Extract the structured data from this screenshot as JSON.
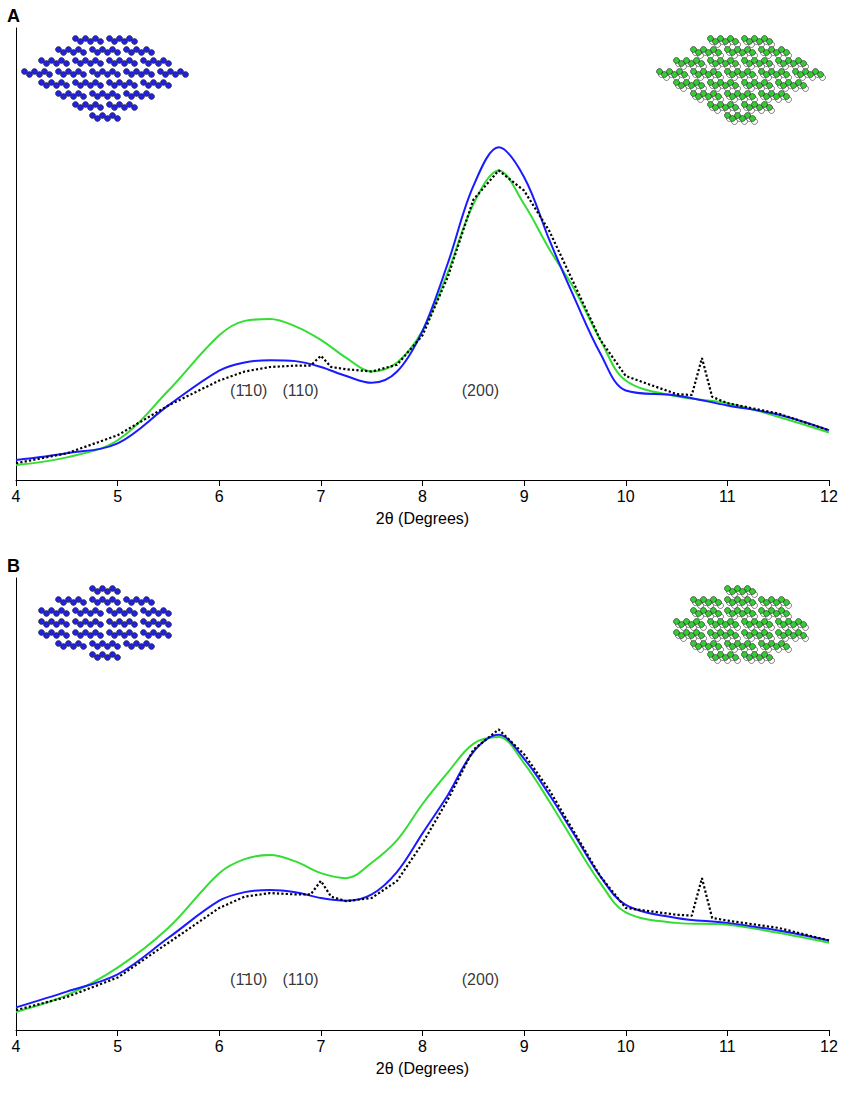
{
  "chart_data": [
    {
      "type": "line",
      "title": "A",
      "x_label": "2θ (Degrees)",
      "xlim": [
        4,
        12
      ],
      "xticks": [
        4,
        5,
        6,
        7,
        8,
        9,
        10,
        11,
        12
      ],
      "ylim": [
        0,
        100
      ],
      "yticks": [],
      "tick_labels": "x",
      "grid": false,
      "series": [
        {
          "color": "#000000",
          "line_style": "dotted",
          "x": [
            4,
            4.5,
            5,
            5.5,
            6,
            6.25,
            6.5,
            6.75,
            6.9,
            7,
            7.1,
            7.25,
            7.5,
            7.75,
            8,
            8.25,
            8.5,
            8.75,
            9,
            9.25,
            9.5,
            9.75,
            10,
            10.5,
            10.65,
            10.75,
            10.85,
            11,
            11.5,
            12
          ],
          "values": [
            3.7,
            5.9,
            9.9,
            16.5,
            22,
            24,
            25,
            25.3,
            25.3,
            27.5,
            25,
            24.5,
            24,
            25.5,
            32,
            45,
            62,
            68.5,
            64,
            55,
            43,
            31,
            23,
            19,
            18.8,
            27,
            18.4,
            17,
            14.7,
            11
          ]
        },
        {
          "color": "#33dd33",
          "line_style": "solid",
          "x": [
            4,
            4.5,
            5,
            5.5,
            6,
            6.25,
            6.5,
            6.75,
            7,
            7.25,
            7.5,
            7.75,
            8,
            8.25,
            8.5,
            8.75,
            9,
            9.25,
            9.5,
            9.75,
            10,
            10.5,
            11,
            11.5,
            12
          ],
          "values": [
            3.3,
            5,
            8.8,
            19.8,
            32,
            35.2,
            35.6,
            34,
            31,
            27,
            24,
            26,
            33,
            46,
            61,
            68.5,
            61,
            51,
            42,
            31,
            22,
            18.5,
            17,
            14,
            10.5
          ]
        },
        {
          "color": "#1a1aff",
          "line_style": "solid",
          "x": [
            4,
            4.5,
            5,
            5.5,
            6,
            6.25,
            6.5,
            6.75,
            7,
            7.25,
            7.5,
            7.75,
            8,
            8.25,
            8.5,
            8.75,
            9,
            9.25,
            9.5,
            9.75,
            10,
            10.5,
            11,
            11.5,
            12
          ],
          "values": [
            4.4,
            5.9,
            8.1,
            16.5,
            24.2,
            26,
            26.5,
            26.3,
            25,
            23,
            21.5,
            24,
            33,
            48,
            65,
            73.6,
            67,
            53,
            40,
            28,
            19.8,
            18.7,
            16.5,
            14.5,
            11
          ]
        }
      ],
      "annotations": [
        {
          "text": "(1̄10)",
          "x": 6.29,
          "y": 19.8
        },
        {
          "text": "(110)",
          "x": 6.8,
          "y": 19.8
        },
        {
          "text": "(200)",
          "x": 8.57,
          "y": 19.8
        }
      ]
    },
    {
      "type": "line",
      "title": "B",
      "x_label": "2θ (Degrees)",
      "xlim": [
        4,
        12
      ],
      "xticks": [
        4,
        5,
        6,
        7,
        8,
        9,
        10,
        11,
        12
      ],
      "ylim": [
        0,
        100
      ],
      "yticks": [],
      "tick_labels": "x",
      "grid": false,
      "series": [
        {
          "color": "#000000",
          "line_style": "dotted",
          "x": [
            4,
            4.5,
            5,
            5.5,
            6,
            6.25,
            6.5,
            6.75,
            6.9,
            7,
            7.1,
            7.25,
            7.5,
            7.75,
            8,
            8.25,
            8.5,
            8.75,
            9,
            9.25,
            9.5,
            9.75,
            10,
            10.5,
            10.65,
            10.75,
            10.85,
            11,
            11.5,
            12
          ],
          "values": [
            4.4,
            7.3,
            11.6,
            19.3,
            27,
            29.5,
            30.3,
            30,
            30,
            33,
            29.5,
            28.5,
            29.2,
            33,
            41.3,
            51,
            62,
            66.5,
            61,
            53,
            43.5,
            34,
            27,
            25.5,
            25.3,
            33.6,
            24.8,
            24.2,
            22.6,
            19.8
          ]
        },
        {
          "color": "#33dd33",
          "line_style": "solid",
          "x": [
            4,
            4.5,
            5,
            5.5,
            6,
            6.25,
            6.5,
            6.75,
            7,
            7.25,
            7.5,
            7.75,
            8,
            8.25,
            8.5,
            8.75,
            9,
            9.25,
            9.5,
            9.75,
            10,
            10.5,
            11,
            11.5,
            12
          ],
          "values": [
            4,
            7.7,
            13.8,
            22.6,
            34.7,
            37.8,
            38.7,
            37.3,
            34.7,
            33.6,
            37,
            42,
            50,
            57,
            63.3,
            64.8,
            59,
            50.5,
            41.3,
            32.5,
            26,
            23.7,
            23.3,
            21.5,
            19.3
          ]
        },
        {
          "color": "#1a1aff",
          "line_style": "solid",
          "x": [
            4,
            4.5,
            5,
            5.5,
            6,
            6.25,
            6.5,
            6.75,
            7,
            7.25,
            7.5,
            7.75,
            8,
            8.25,
            8.5,
            8.75,
            9,
            9.25,
            9.5,
            9.75,
            10,
            10.5,
            11,
            11.5,
            12
          ],
          "values": [
            5,
            8.5,
            12.3,
            20.4,
            28.6,
            30.5,
            31,
            30.5,
            29.2,
            28.6,
            30,
            35,
            43.5,
            52,
            61.5,
            65.3,
            60,
            52,
            43,
            34,
            27.7,
            24.8,
            23.7,
            22,
            19.8
          ]
        }
      ],
      "annotations": [
        {
          "text": "(1̄10)",
          "x": 6.29,
          "y": 11.2
        },
        {
          "text": "(110)",
          "x": 6.8,
          "y": 11.2
        },
        {
          "text": "(200)",
          "x": 8.57,
          "y": 11.2
        }
      ]
    }
  ]
}
